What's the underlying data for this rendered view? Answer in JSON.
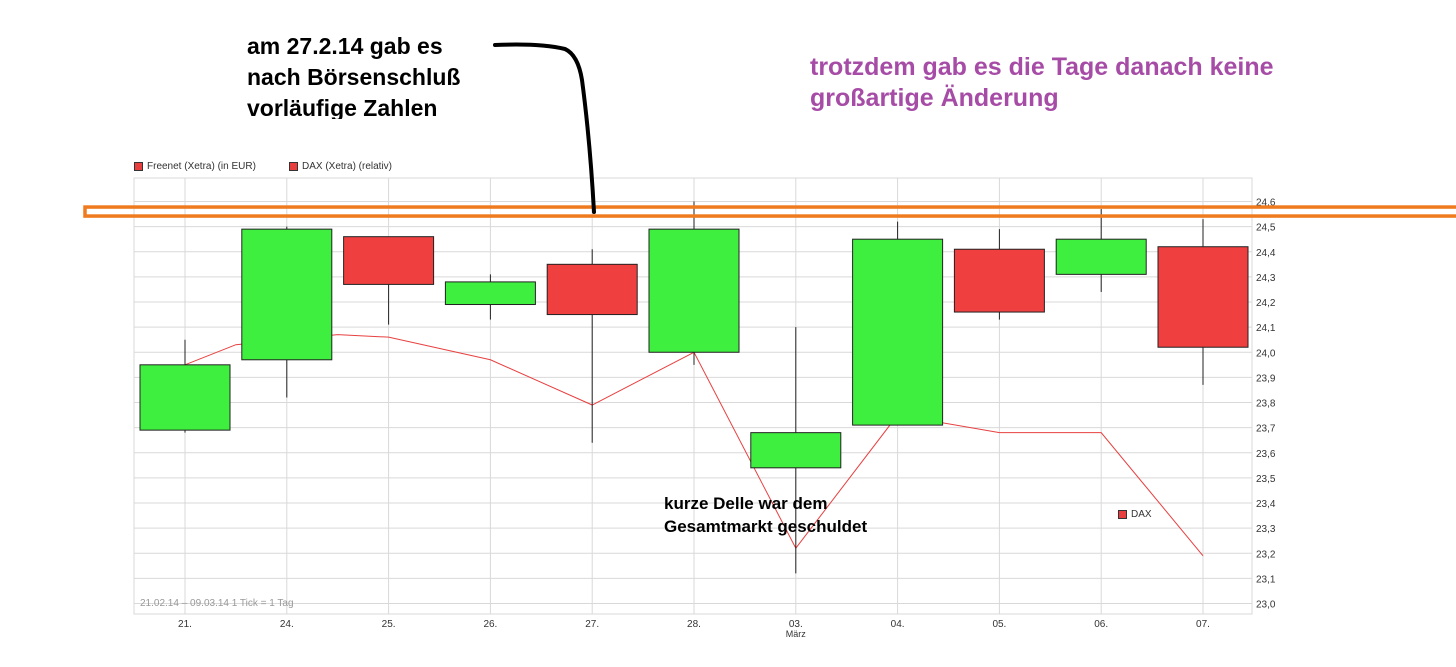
{
  "annotations": {
    "black": [
      "am 27.2.14 gab es",
      "nach Börsenschluß",
      "vorläufige Zahlen"
    ],
    "purple": [
      "trotzdem gab es die Tage danach keine",
      "großartige Änderung"
    ],
    "delle": [
      "kurze Delle war dem",
      "Gesamtmarkt geschuldet"
    ]
  },
  "footer": {
    "range": "21.02.14 – 09.03.14   1 Tick = 1 Tag"
  },
  "colors": {
    "up": "#3fef3f",
    "down": "#ef3f3f",
    "dax_line": "#e84040",
    "highlight": "#f07a1e",
    "grid": "#d9d9d9",
    "annotation_purple": "#a64ca6"
  },
  "chart_data": {
    "type": "candlestick",
    "legend": [
      "Freenet (Xetra) (in EUR)",
      "DAX (Xetra) (relativ)"
    ],
    "series_label": "DAX",
    "x": [
      "21.",
      "24.",
      "25.",
      "26.",
      "27.",
      "28.",
      "03.",
      "04.",
      "05.",
      "06.",
      "07."
    ],
    "x_sublabel": "März",
    "ylim": [
      23.0,
      24.6
    ],
    "y_ticks": [
      "23,0",
      "23,1",
      "23,2",
      "23,3",
      "23,4",
      "23,5",
      "23,6",
      "23,7",
      "23,8",
      "23,9",
      "24,0",
      "24,1",
      "24,2",
      "24,3",
      "24,4",
      "24,5",
      "24,6"
    ],
    "grid": true,
    "highlight_level": 24.56,
    "candles": [
      {
        "open": 23.69,
        "high": 24.05,
        "low": 23.68,
        "close": 23.95
      },
      {
        "open": 23.97,
        "high": 24.5,
        "low": 23.82,
        "close": 24.49
      },
      {
        "open": 24.46,
        "high": 24.46,
        "low": 24.11,
        "close": 24.27
      },
      {
        "open": 24.19,
        "high": 24.31,
        "low": 24.13,
        "close": 24.28
      },
      {
        "open": 24.35,
        "high": 24.41,
        "low": 23.64,
        "close": 24.15
      },
      {
        "open": 24.0,
        "high": 24.6,
        "low": 23.95,
        "close": 24.49
      },
      {
        "open": 23.54,
        "high": 24.1,
        "low": 23.12,
        "close": 23.68
      },
      {
        "open": 23.71,
        "high": 24.52,
        "low": 23.71,
        "close": 24.45
      },
      {
        "open": 24.41,
        "high": 24.49,
        "low": 24.13,
        "close": 24.16
      },
      {
        "open": 24.31,
        "high": 24.57,
        "low": 24.24,
        "close": 24.45
      },
      {
        "open": 24.42,
        "high": 24.53,
        "low": 23.87,
        "close": 24.02
      }
    ],
    "dax_values": [
      23.95,
      24.03,
      24.07,
      24.06,
      23.97,
      23.79,
      24.0,
      23.22,
      23.75,
      23.68,
      23.68,
      23.19
    ],
    "dax_x_positions": [
      0,
      0.5,
      1.5,
      2,
      3,
      4,
      5,
      6,
      7,
      8,
      9,
      10
    ]
  }
}
